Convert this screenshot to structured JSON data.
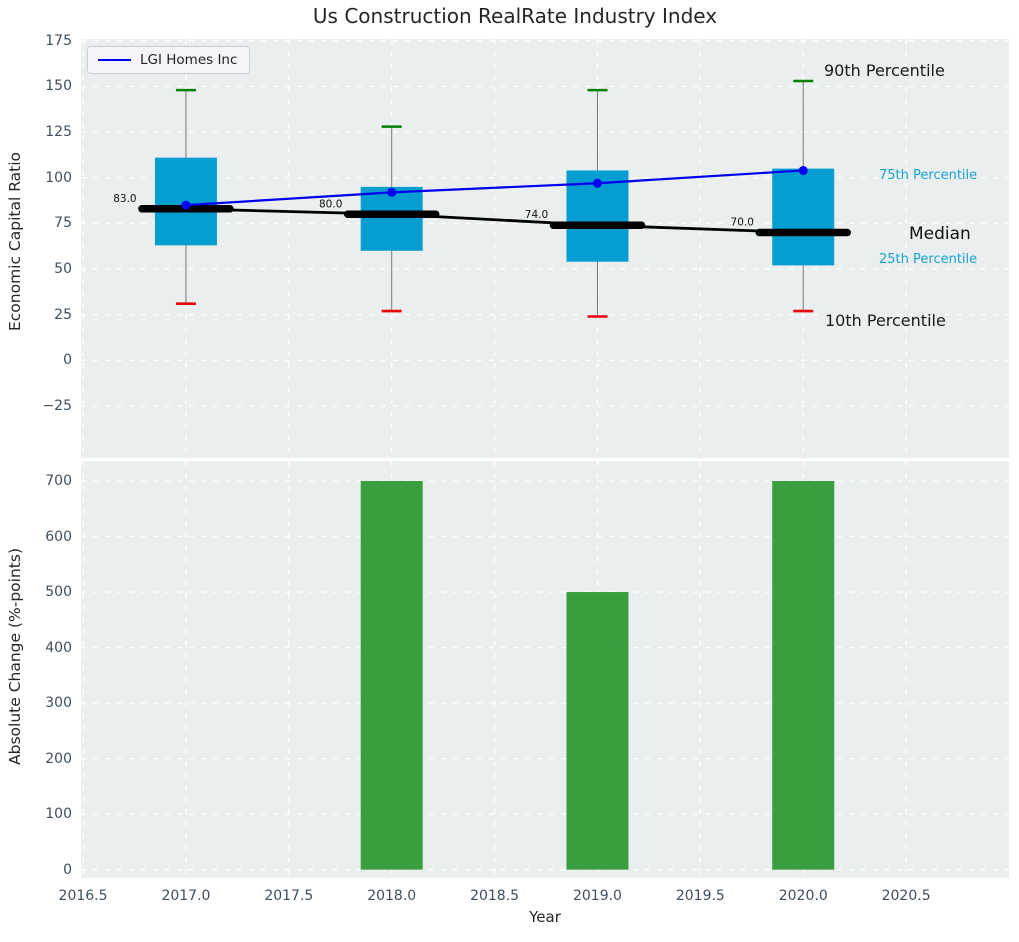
{
  "colors": {
    "plot_bg": "#eaeeee",
    "grid": "#ffffff",
    "box_fill": "#069ed0",
    "median_line": "#000000",
    "lgi_line": "#0000ee",
    "p90_cap": "#008000",
    "p10_cap": "#e8000b",
    "whisker": "#777777",
    "bar_fill": "#3a9e3e",
    "tick_text": "#3d4f63",
    "percentile_label": "#18a3d2"
  },
  "chart_data": [
    {
      "type": "boxplot-with-line",
      "title": "Us Construction RealRate Industry Index",
      "ylabel": "Economic Capital Ratio",
      "legend": [
        "LGI Homes Inc"
      ],
      "legend_position": "upper left",
      "grid": true,
      "x": [
        2017,
        2018,
        2019,
        2020
      ],
      "series": [
        {
          "name": "90th Percentile",
          "values": [
            148,
            128,
            148,
            153
          ]
        },
        {
          "name": "75th Percentile",
          "values": [
            111,
            95,
            104,
            105
          ]
        },
        {
          "name": "Median",
          "values": [
            83,
            80,
            74,
            70
          ]
        },
        {
          "name": "25th Percentile",
          "values": [
            63,
            60,
            54,
            52
          ]
        },
        {
          "name": "10th Percentile",
          "values": [
            31,
            27,
            24,
            27
          ]
        },
        {
          "name": "LGI Homes Inc",
          "values": [
            85,
            92,
            97,
            104
          ]
        }
      ],
      "median_labels": [
        "83.0",
        "80.0",
        "74.0",
        "70.0"
      ],
      "right_labels": {
        "p90": "90th Percentile",
        "p75": "75th Percentile",
        "median": "Median",
        "p25": "25th Percentile",
        "p10": "10th Percentile"
      },
      "yticks": [
        175,
        150,
        125,
        100,
        75,
        50,
        25,
        0,
        -25
      ],
      "ylim": [
        -53.5,
        176
      ],
      "xlim": [
        2016.49,
        2021.0
      ]
    },
    {
      "type": "bar",
      "xlabel": "Year",
      "ylabel": "Absolute Change (%-points)",
      "grid": true,
      "x": [
        2018,
        2019,
        2020
      ],
      "values": [
        700,
        500,
        700
      ],
      "yticks": [
        0,
        100,
        200,
        300,
        400,
        500,
        600,
        700
      ],
      "xticks": [
        2016.5,
        2017.0,
        2017.5,
        2018.0,
        2018.5,
        2019.0,
        2019.5,
        2020.0,
        2020.5
      ],
      "ylim": [
        -15,
        736
      ],
      "xlim": [
        2016.49,
        2021.0
      ]
    }
  ]
}
